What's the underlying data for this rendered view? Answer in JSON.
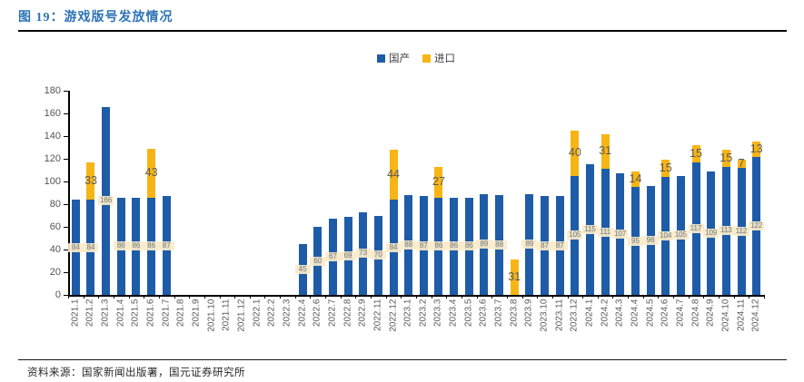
{
  "figure": {
    "title": "图 19：游戏版号发放情况",
    "source_note": "资料来源：国家新闻出版署，国元证券研究所",
    "title_color": "#2E74B5"
  },
  "chart_data": {
    "type": "bar",
    "stacked": true,
    "grid": false,
    "legend_position": "top-center",
    "ylim": [
      0,
      180
    ],
    "ytick_step": 20,
    "xlabel": "",
    "ylabel": "",
    "categories": [
      "2021.1",
      "2021.2",
      "2021.3",
      "2021.4",
      "2021.5",
      "2021.6",
      "2021.7",
      "2021.8",
      "2021.9",
      "2021.10",
      "2021.11",
      "2021.12",
      "2022.1",
      "2022.2",
      "2022.3",
      "2022.4",
      "2022.6",
      "2022.7",
      "2022.8",
      "2022.9",
      "2022.11",
      "2022.12",
      "2023.1",
      "2023.2",
      "2023.3",
      "2023.4",
      "2023.5",
      "2023.6",
      "2023.7",
      "2023.8",
      "2023.9",
      "2023.10",
      "2023.11",
      "2023.12",
      "2024.1",
      "2024.2",
      "2024.3",
      "2024.4",
      "2024.5",
      "2024.6",
      "2024.7",
      "2024.8",
      "2024.9",
      "2024.10",
      "2024.11",
      "2024.12"
    ],
    "series": [
      {
        "name": "国产",
        "color": "#1E5CA8",
        "label_text_color": "#7a7a7a",
        "values": [
          84,
          84,
          166,
          86,
          86,
          86,
          87,
          0,
          0,
          0,
          0,
          0,
          0,
          0,
          0,
          45,
          60,
          67,
          69,
          73,
          70,
          84,
          88,
          87,
          86,
          86,
          86,
          89,
          88,
          0,
          89,
          87,
          87,
          105,
          115,
          111,
          107,
          95,
          96,
          104,
          105,
          117,
          109,
          113,
          112,
          122
        ]
      },
      {
        "name": "进口",
        "color": "#F7B515",
        "label_text_color": "#595959",
        "values": [
          0,
          33,
          0,
          0,
          0,
          43,
          0,
          0,
          0,
          0,
          0,
          0,
          0,
          0,
          0,
          0,
          0,
          0,
          0,
          0,
          0,
          44,
          0,
          0,
          27,
          0,
          0,
          0,
          0,
          31,
          0,
          0,
          0,
          40,
          0,
          31,
          0,
          14,
          0,
          15,
          0,
          15,
          0,
          15,
          7,
          13
        ]
      }
    ]
  }
}
